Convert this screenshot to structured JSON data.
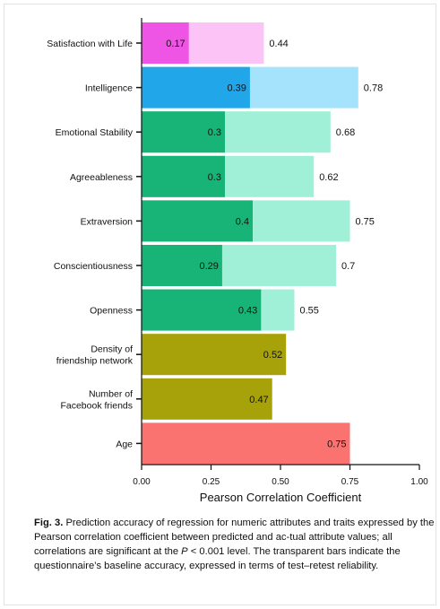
{
  "chart_data": {
    "type": "bar",
    "orientation": "horizontal",
    "categories": [
      "Satisfaction with Life",
      "Intelligence",
      "Emotional Stability",
      "Agreeableness",
      "Extraversion",
      "Conscientiousness",
      "Openness",
      "Density of friendship network",
      "Number of Facebook friends",
      "Age"
    ],
    "category_lines": [
      [
        "Satisfaction with Life"
      ],
      [
        "Intelligence"
      ],
      [
        "Emotional Stability"
      ],
      [
        "Agreeableness"
      ],
      [
        "Extraversion"
      ],
      [
        "Conscientiousness"
      ],
      [
        "Openness"
      ],
      [
        "Density of",
        "friendship network"
      ],
      [
        "Number of",
        "Facebook friends"
      ],
      [
        "Age"
      ]
    ],
    "series": [
      {
        "values": [
          0.17,
          0.39,
          0.3,
          0.3,
          0.4,
          0.29,
          0.43,
          0.52,
          0.47,
          0.75
        ],
        "labels": [
          "0.17",
          "0.39",
          "0.3",
          "0.3",
          "0.4",
          "0.29",
          "0.43",
          "0.52",
          "0.47",
          "0.75"
        ],
        "colors": [
          "#ee55e4",
          "#21a6ea",
          "#18b477",
          "#18b477",
          "#18b477",
          "#18b477",
          "#18b477",
          "#a7a10a",
          "#a7a10a",
          "#fb7370"
        ]
      },
      {
        "values": [
          0.44,
          0.78,
          0.68,
          0.62,
          0.75,
          0.7,
          0.55,
          null,
          null,
          null
        ],
        "labels": [
          "0.44",
          "0.78",
          "0.68",
          "0.62",
          "0.75",
          "0.7",
          "0.55",
          "",
          "",
          ""
        ],
        "colors": [
          "#fbc3f6",
          "#a4e3fb",
          "#9ff0d6",
          "#9ff0d6",
          "#9ff0d6",
          "#9ff0d6",
          "#9ff0d6",
          "",
          "",
          ""
        ]
      }
    ],
    "xlabel": "Pearson Correlation Coefficient",
    "xlim": [
      0,
      1
    ],
    "xticks": [
      0,
      0.25,
      0.5,
      0.75,
      1
    ],
    "xtick_labels": [
      "0.00",
      "0.25",
      "0.50",
      "0.75",
      "1.00"
    ]
  },
  "caption": {
    "fig_label": "Fig. 3.",
    "text_1": "Prediction accuracy of regression for numeric attributes and traits expressed by the Pearson correlation coefficient between predicted and ac-tual attribute values; all correlations are significant at the ",
    "p_symbol": "P",
    "text_2": " < 0.001 level. The transparent bars indicate the questionnaire’s baseline accuracy, expressed in terms of test–retest reliability."
  }
}
